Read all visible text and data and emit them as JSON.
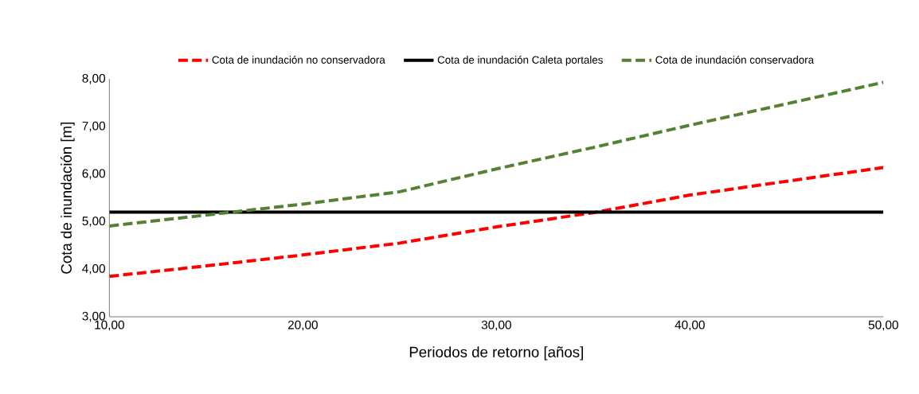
{
  "chart_data": {
    "type": "line",
    "xlabel": "Periodos de retorno [años]",
    "ylabel": "Cota de inundación [m]",
    "x": [
      10,
      15,
      20,
      25,
      30,
      35,
      40,
      45,
      50
    ],
    "series": [
      {
        "name": "Cota de inundación no conservadora",
        "color": "#ff0000",
        "line_style": "dashed",
        "values": [
          3.85,
          4.07,
          4.3,
          4.55,
          4.89,
          5.19,
          5.56,
          5.85,
          6.14
        ]
      },
      {
        "name": "Cota de inundación Caleta portales",
        "color": "#000000",
        "line_style": "solid",
        "values": [
          5.2,
          5.2,
          5.2,
          5.2,
          5.2,
          5.2,
          5.2,
          5.2,
          5.2
        ]
      },
      {
        "name": "Cota de inundación conservadora",
        "color": "#548235",
        "line_style": "dashed",
        "values": [
          4.91,
          5.14,
          5.37,
          5.63,
          6.11,
          6.56,
          7.03,
          7.48,
          7.93
        ]
      }
    ],
    "xlim": [
      10,
      50
    ],
    "ylim": [
      3,
      8
    ],
    "xticks": [
      {
        "value": 10,
        "label": "10,00"
      },
      {
        "value": 20,
        "label": "20,00"
      },
      {
        "value": 30,
        "label": "30,00"
      },
      {
        "value": 40,
        "label": "40,00"
      },
      {
        "value": 50,
        "label": "50,00"
      }
    ],
    "yticks": [
      {
        "value": 3,
        "label": "3,00"
      },
      {
        "value": 4,
        "label": "4,00"
      },
      {
        "value": 5,
        "label": "5,00"
      },
      {
        "value": 6,
        "label": "6,00"
      },
      {
        "value": 7,
        "label": "7,00"
      },
      {
        "value": 8,
        "label": "8,00"
      }
    ],
    "grid": false,
    "legend": "top",
    "marker": "none"
  }
}
